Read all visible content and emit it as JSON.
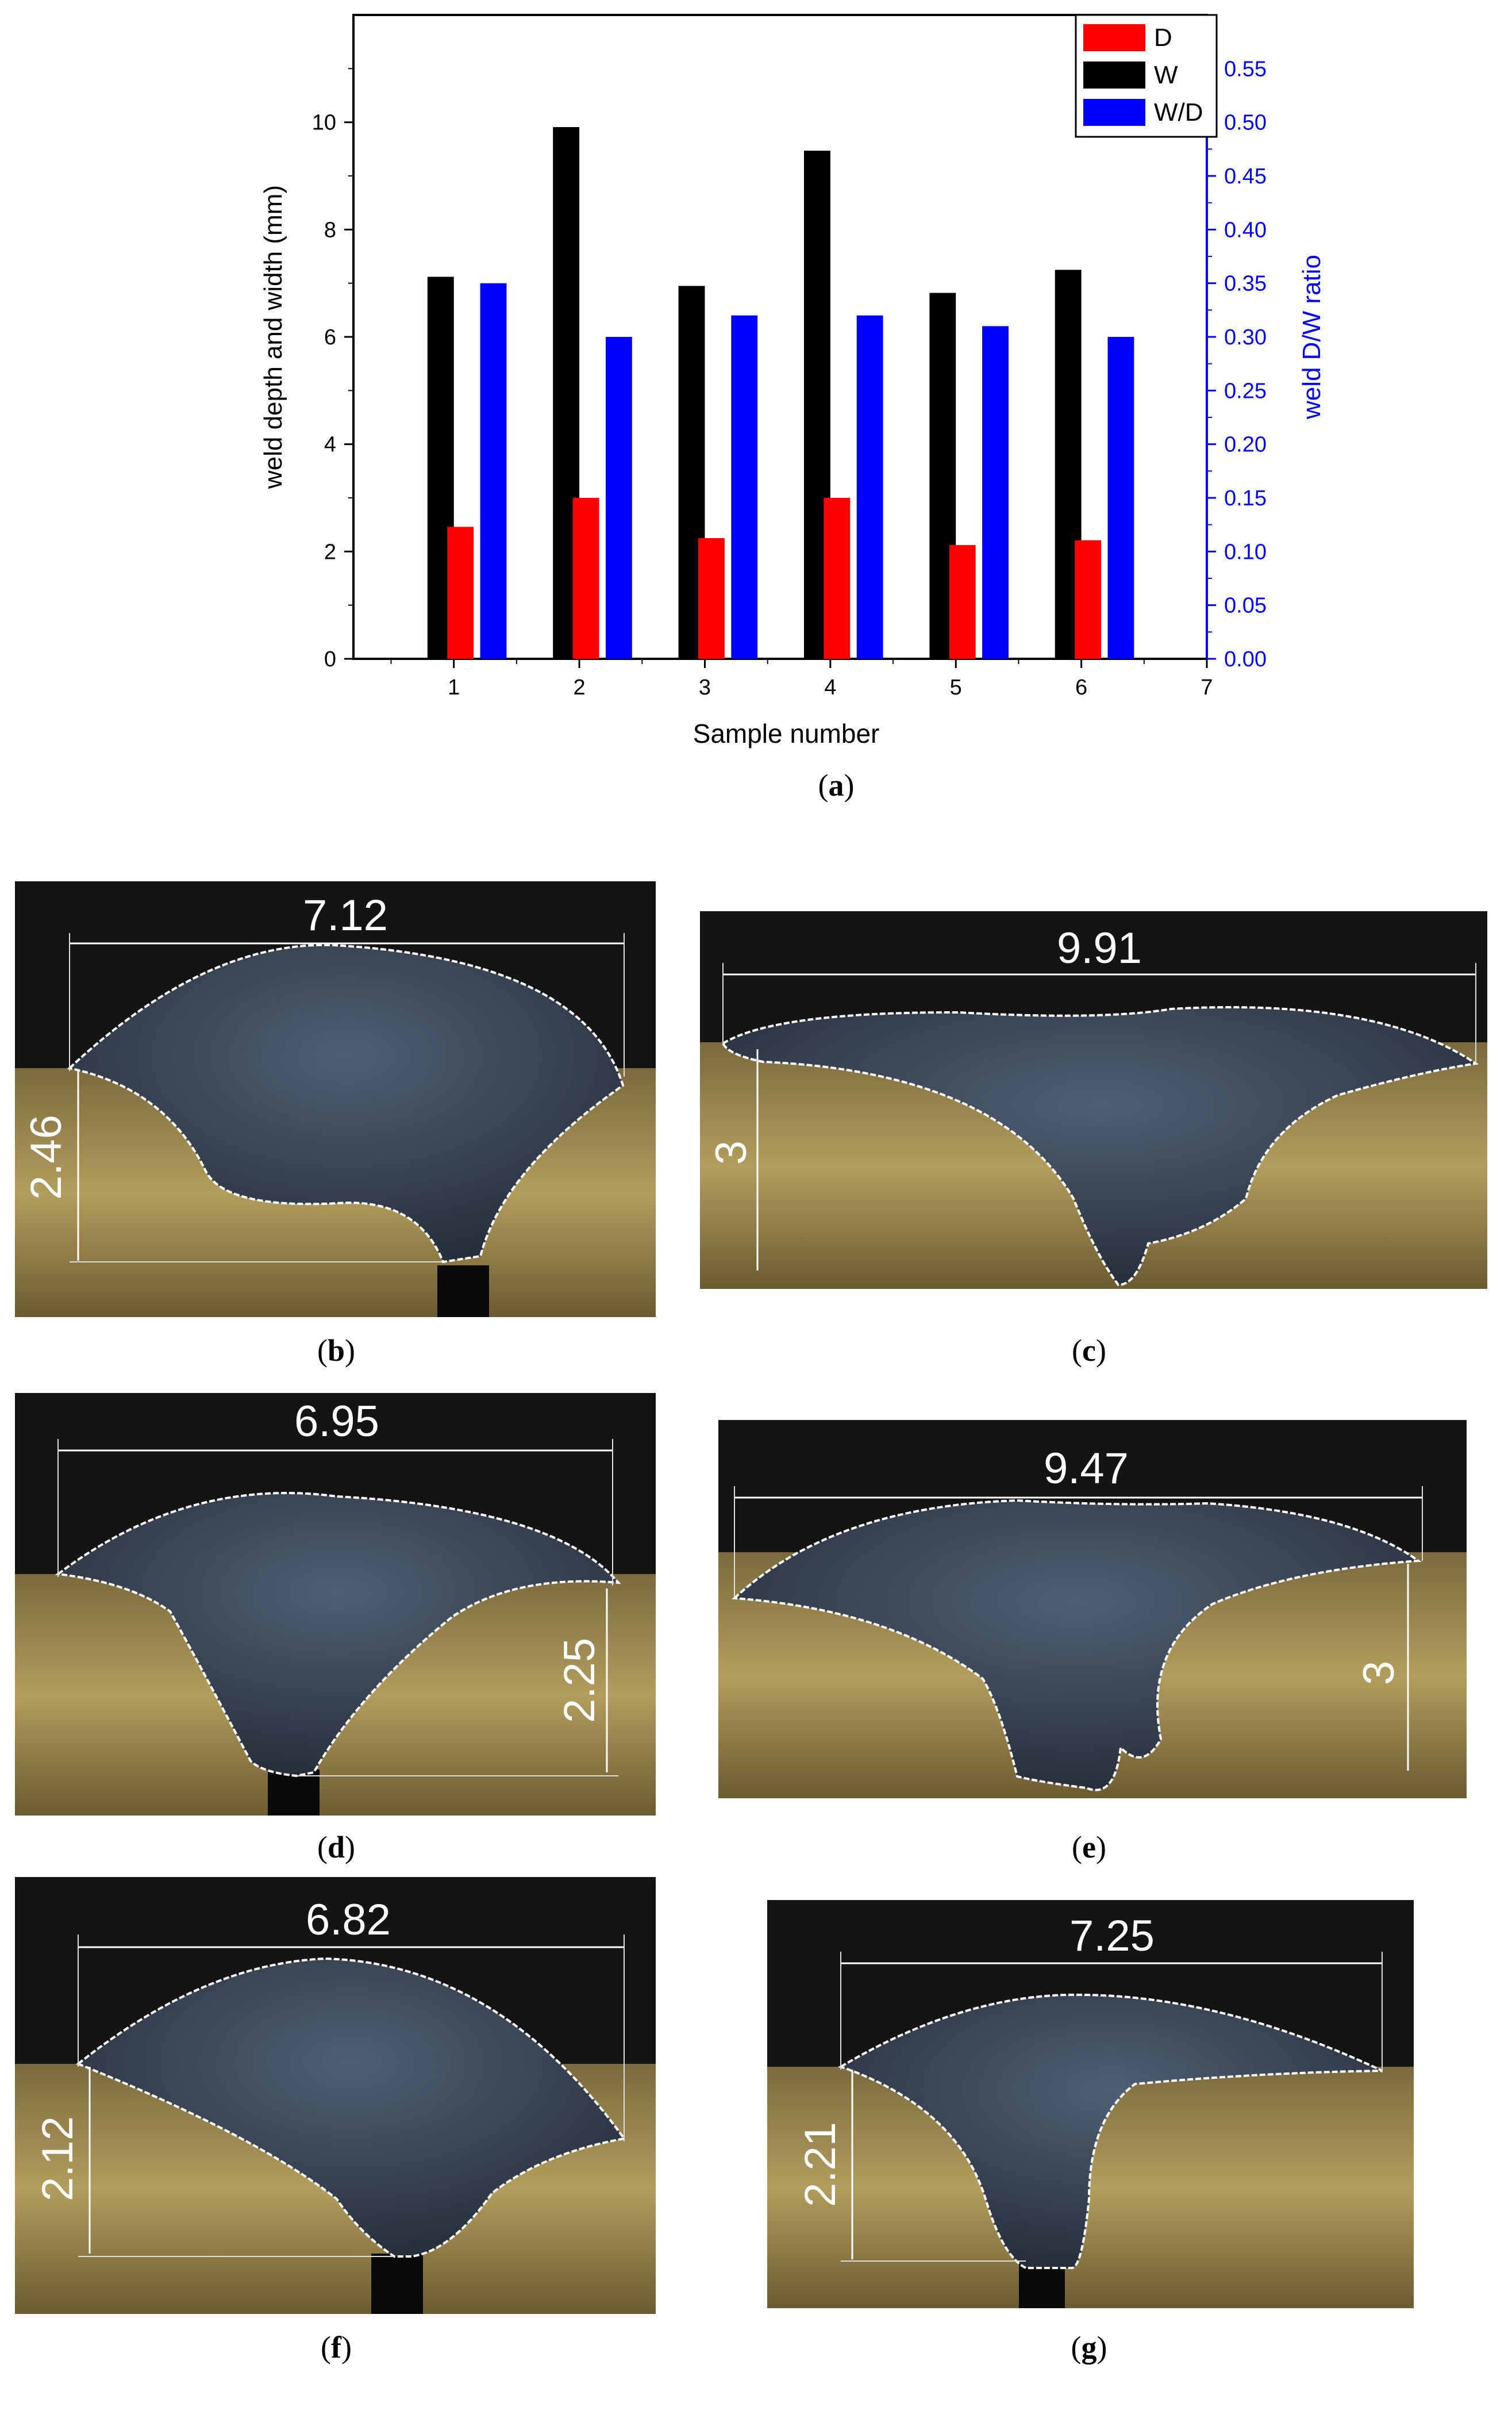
{
  "chart_data": {
    "type": "bar",
    "xlabel": "Sample number",
    "ylabel": "weld depth and width (mm)",
    "y2label": "weld D/W ratio",
    "categories": [
      1,
      2,
      3,
      4,
      5,
      6
    ],
    "x_ticks": [
      "1",
      "2",
      "3",
      "4",
      "5",
      "6",
      "7"
    ],
    "xlim": [
      0.2,
      7
    ],
    "ylim": [
      0,
      12
    ],
    "y2lim": [
      0,
      0.6
    ],
    "y_ticks": [
      "0",
      "2",
      "4",
      "6",
      "8",
      "10"
    ],
    "y2_ticks": [
      "0.00",
      "0.05",
      "0.10",
      "0.15",
      "0.20",
      "0.25",
      "0.30",
      "0.35",
      "0.40",
      "0.45",
      "0.50",
      "0.55"
    ],
    "legend_position": "top-right",
    "series": [
      {
        "name": "D",
        "axis": "left",
        "color": "#ff0000",
        "values": [
          2.46,
          3.0,
          2.25,
          3.0,
          2.12,
          2.21
        ]
      },
      {
        "name": "W",
        "axis": "left",
        "color": "#000000",
        "values": [
          7.12,
          9.91,
          6.95,
          9.47,
          6.82,
          7.25
        ]
      },
      {
        "name": "W/D",
        "axis": "right",
        "color": "#0000ff",
        "values": [
          0.35,
          0.3,
          0.32,
          0.32,
          0.31,
          0.3
        ]
      }
    ],
    "right_axis_color": "#0000ff"
  },
  "captions": {
    "a": "a",
    "b": "b",
    "c": "c",
    "d": "d",
    "e": "e",
    "f": "f",
    "g": "g"
  },
  "photos": [
    {
      "id": "b",
      "width": "7.12",
      "depth": "2.46"
    },
    {
      "id": "c",
      "width": "9.91",
      "depth": "3"
    },
    {
      "id": "d",
      "width": "6.95",
      "depth": "2.25"
    },
    {
      "id": "e",
      "width": "9.47",
      "depth": "3"
    },
    {
      "id": "f",
      "width": "6.82",
      "depth": "2.12"
    },
    {
      "id": "g",
      "width": "7.25",
      "depth": "2.21"
    }
  ]
}
